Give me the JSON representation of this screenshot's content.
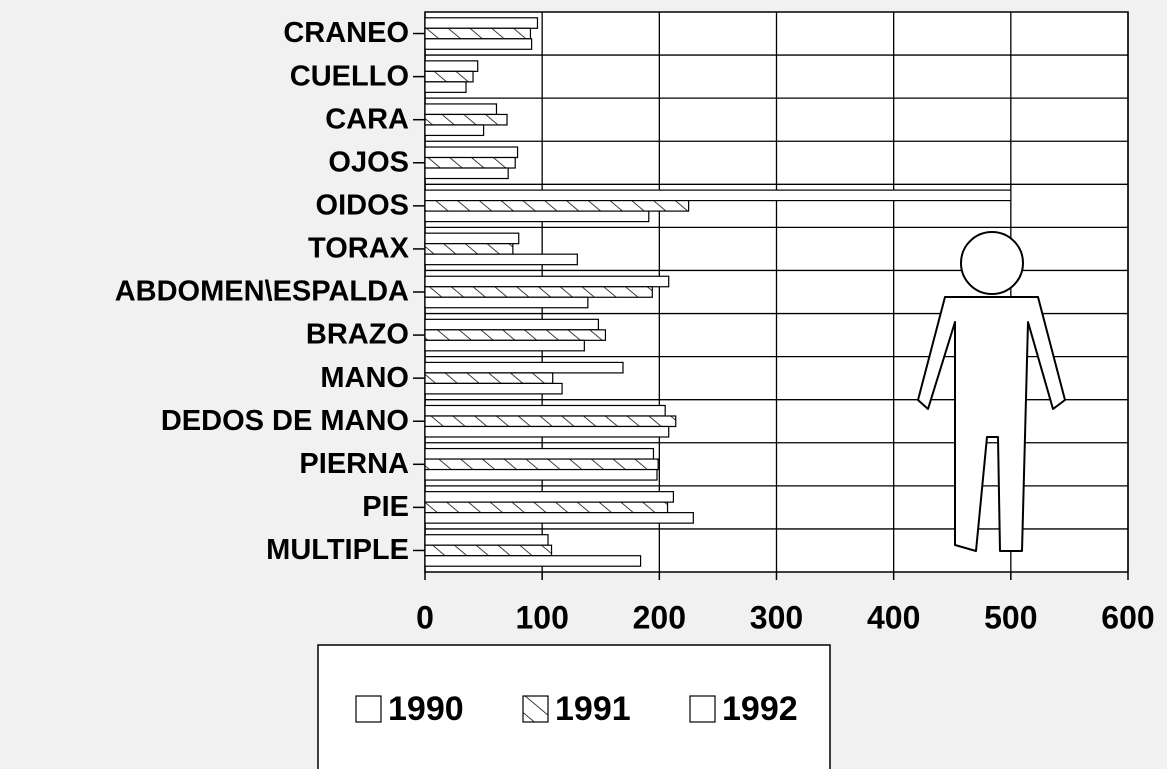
{
  "chart_data": {
    "type": "bar",
    "orientation": "horizontal",
    "categories": [
      "CRANEO",
      "CUELLO",
      "CARA",
      "OJOS",
      "OIDOS",
      "TORAX",
      "ABDOMEN\\ESPALDA",
      "BRAZO",
      "MANO",
      "DEDOS DE MANO",
      "PIERNA",
      "PIE",
      "MULTIPLE"
    ],
    "series": [
      {
        "name": "1990",
        "color": "#ffffff",
        "values": [
          96,
          45,
          61,
          79,
          500,
          80,
          208,
          148,
          169,
          205,
          195,
          212,
          105
        ]
      },
      {
        "name": "1991",
        "color": "#ffffff",
        "hatch": true,
        "values": [
          90,
          41,
          70,
          77,
          225,
          75,
          194,
          154,
          109,
          214,
          199,
          207,
          108
        ]
      },
      {
        "name": "1992",
        "color": "#ffffff",
        "values": [
          91,
          35,
          50,
          71,
          191,
          130,
          139,
          136,
          117,
          208,
          198,
          229,
          184
        ]
      }
    ],
    "xlim": [
      0,
      600
    ],
    "xticks": [
      0,
      100,
      200,
      300,
      400,
      500,
      600
    ],
    "grid": true,
    "legend": "bottom"
  }
}
